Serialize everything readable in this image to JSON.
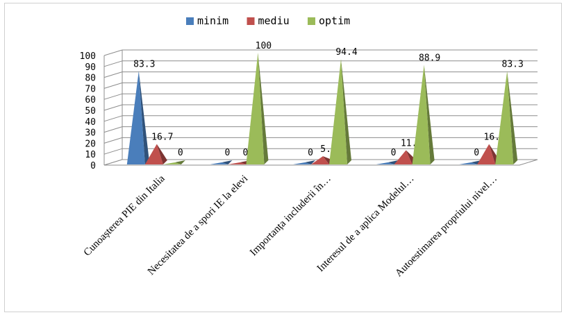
{
  "chart_data": {
    "type": "bar",
    "bar_shape": "pyramid-3d",
    "categories": [
      "Cunoașterea PIE din Italia",
      "Necesitatea de a spori IE la elevi",
      "Importanța includerii în…",
      "Interesul de a aplica Modelul…",
      "Autoestimarea propriului nivel…"
    ],
    "series": [
      {
        "name": "minim",
        "color": "#4a7ebb",
        "values": [
          83.3,
          0,
          0,
          0,
          0
        ]
      },
      {
        "name": "mediu",
        "color": "#c0504d",
        "values": [
          16.7,
          0,
          5.6,
          11.1,
          16.7
        ]
      },
      {
        "name": "optim",
        "color": "#9bbb59",
        "values": [
          0,
          100,
          94.4,
          88.9,
          83.3
        ]
      }
    ],
    "value_labels": [
      [
        "83.3",
        "16.7",
        "0"
      ],
      [
        "0",
        "0",
        "100"
      ],
      [
        "0",
        "5.6",
        "94.4"
      ],
      [
        "0",
        "11.1",
        "88.9"
      ],
      [
        "0",
        "16.7",
        "83.3"
      ]
    ],
    "y_ticks": [
      "0",
      "10",
      "20",
      "30",
      "40",
      "50",
      "60",
      "70",
      "80",
      "90",
      "100"
    ],
    "ylim": [
      0,
      100
    ],
    "legend_position": "top-center",
    "grid": true
  }
}
